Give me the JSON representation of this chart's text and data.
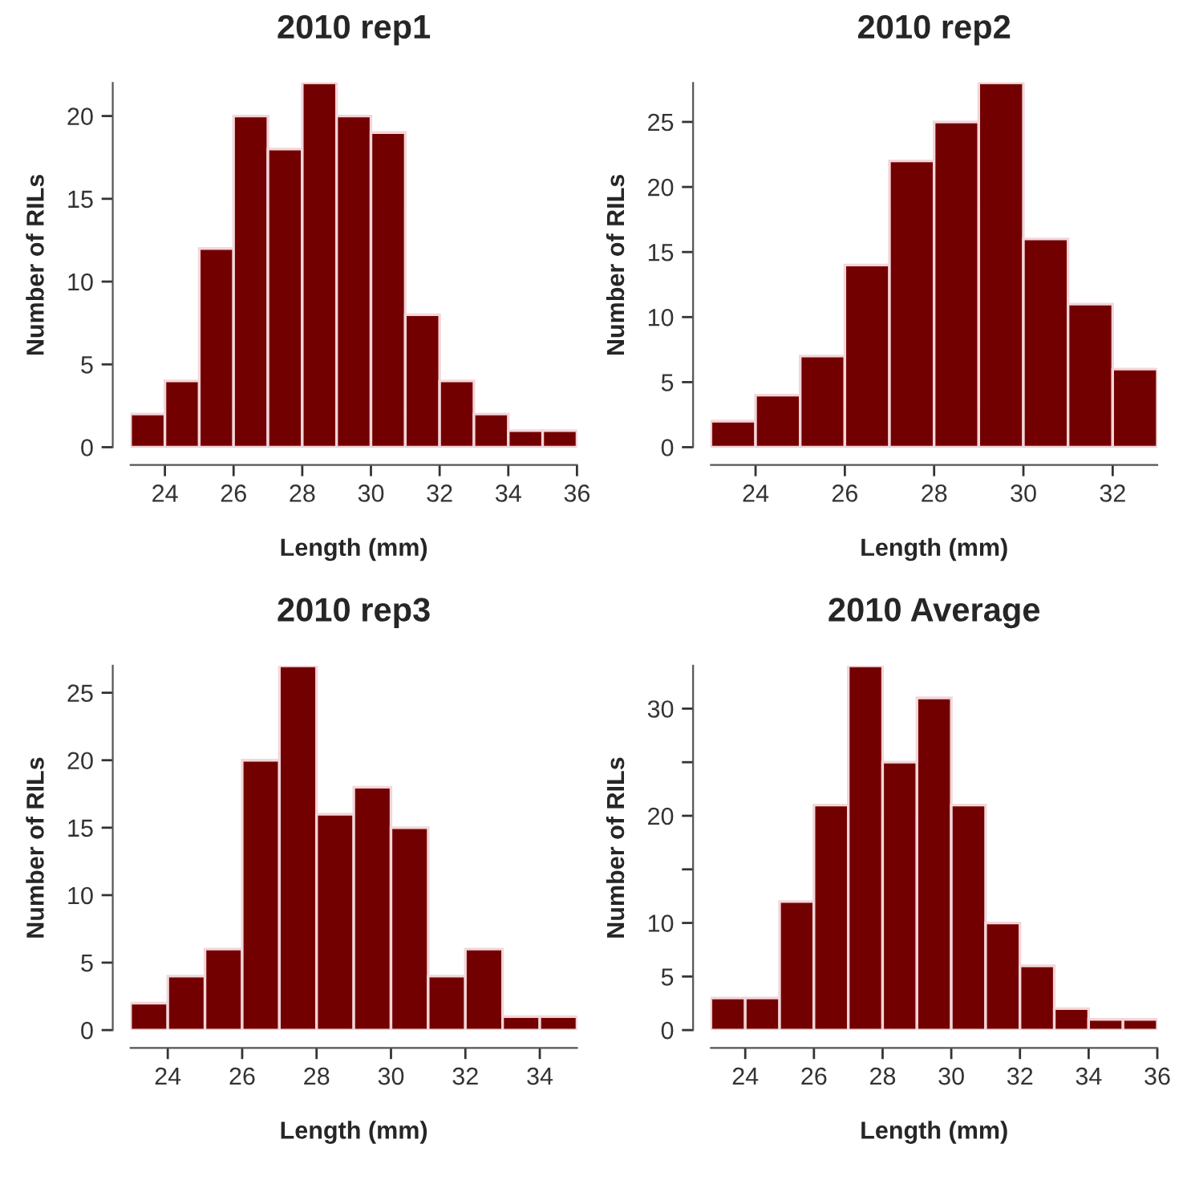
{
  "chart_data": [
    {
      "type": "histogram",
      "title": "2010 rep1",
      "xlabel": "Length (mm)",
      "ylabel": "Number of RILs",
      "color": "#730000",
      "bins": [
        23,
        24,
        25,
        26,
        27,
        28,
        29,
        30,
        31,
        32,
        33,
        34,
        35,
        36
      ],
      "values": [
        2,
        4,
        12,
        20,
        18,
        22,
        20,
        19,
        8,
        4,
        2,
        1,
        1
      ],
      "xlim": [
        23,
        36
      ],
      "ylim": [
        0,
        22
      ],
      "xticks": [
        24,
        26,
        28,
        30,
        32,
        34,
        36
      ],
      "yticks": [
        0,
        5,
        10,
        15,
        20
      ],
      "grid": false
    },
    {
      "type": "histogram",
      "title": "2010 rep2",
      "xlabel": "Length (mm)",
      "ylabel": "Number of RILs",
      "color": "#730000",
      "bins": [
        23,
        24,
        25,
        26,
        27,
        28,
        29,
        30,
        31,
        32,
        33
      ],
      "values": [
        2,
        4,
        7,
        14,
        22,
        25,
        28,
        16,
        11,
        6
      ],
      "xlim": [
        23,
        33
      ],
      "ylim": [
        0,
        28
      ],
      "xticks": [
        24,
        26,
        28,
        30,
        32
      ],
      "yticks": [
        0,
        5,
        10,
        15,
        20,
        25
      ],
      "grid": false
    },
    {
      "type": "histogram",
      "title": "2010 rep3",
      "xlabel": "Length (mm)",
      "ylabel": "Number of RILs",
      "color": "#730000",
      "bins": [
        23,
        24,
        25,
        26,
        27,
        28,
        29,
        30,
        31,
        32,
        33,
        34,
        35
      ],
      "values": [
        2,
        4,
        6,
        20,
        27,
        16,
        18,
        15,
        4,
        6,
        1,
        1
      ],
      "xlim": [
        23,
        35
      ],
      "ylim": [
        0,
        27
      ],
      "xticks": [
        24,
        26,
        28,
        30,
        32,
        34
      ],
      "yticks": [
        0,
        5,
        10,
        15,
        20,
        25
      ],
      "grid": false
    },
    {
      "type": "histogram",
      "title": "2010 Average",
      "xlabel": "Length (mm)",
      "ylabel": "Number of RILs",
      "color": "#730000",
      "bins": [
        23,
        24,
        25,
        26,
        27,
        28,
        29,
        30,
        31,
        32,
        33,
        34,
        35,
        36
      ],
      "values": [
        3,
        3,
        12,
        21,
        34,
        25,
        31,
        21,
        10,
        6,
        2,
        1,
        1
      ],
      "xlim": [
        23,
        36
      ],
      "ylim": [
        0,
        34
      ],
      "xticks": [
        24,
        26,
        28,
        30,
        32,
        34,
        36
      ],
      "yticks": [
        0,
        5,
        10,
        {
          "value": 15,
          "label": null
        },
        20,
        {
          "value": 25,
          "label": null
        },
        30
      ],
      "grid": false
    }
  ]
}
